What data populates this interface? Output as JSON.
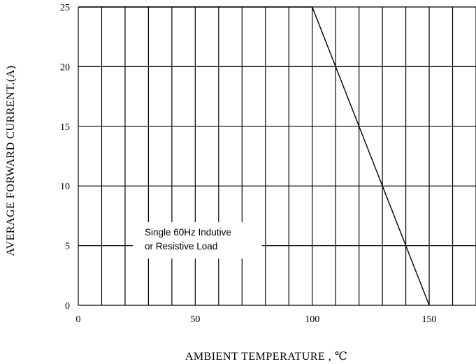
{
  "chart_data": {
    "type": "line",
    "title": "",
    "xlabel": "AMBIENT TEMPERATURE , ℃",
    "ylabel": "AVERAGE FORWARD CURRENT.(A)",
    "xlim": [
      0,
      170
    ],
    "ylim": [
      0,
      25
    ],
    "x_ticks": [
      0,
      50,
      100,
      150
    ],
    "x_tick_labels": [
      "0",
      "50",
      "100",
      "150"
    ],
    "y_ticks": [
      0,
      5,
      10,
      15,
      20,
      25
    ],
    "y_tick_labels": [
      "0",
      "5",
      "10",
      "15",
      "20",
      "25"
    ],
    "grid": true,
    "x_grid_step": 10,
    "y_grid_step": 5,
    "series": [
      {
        "x": [
          0,
          100,
          150
        ],
        "y": [
          25,
          25,
          0
        ]
      }
    ],
    "annotation": [
      "Single 60Hz Indutive",
      "or Resistive Load"
    ]
  }
}
